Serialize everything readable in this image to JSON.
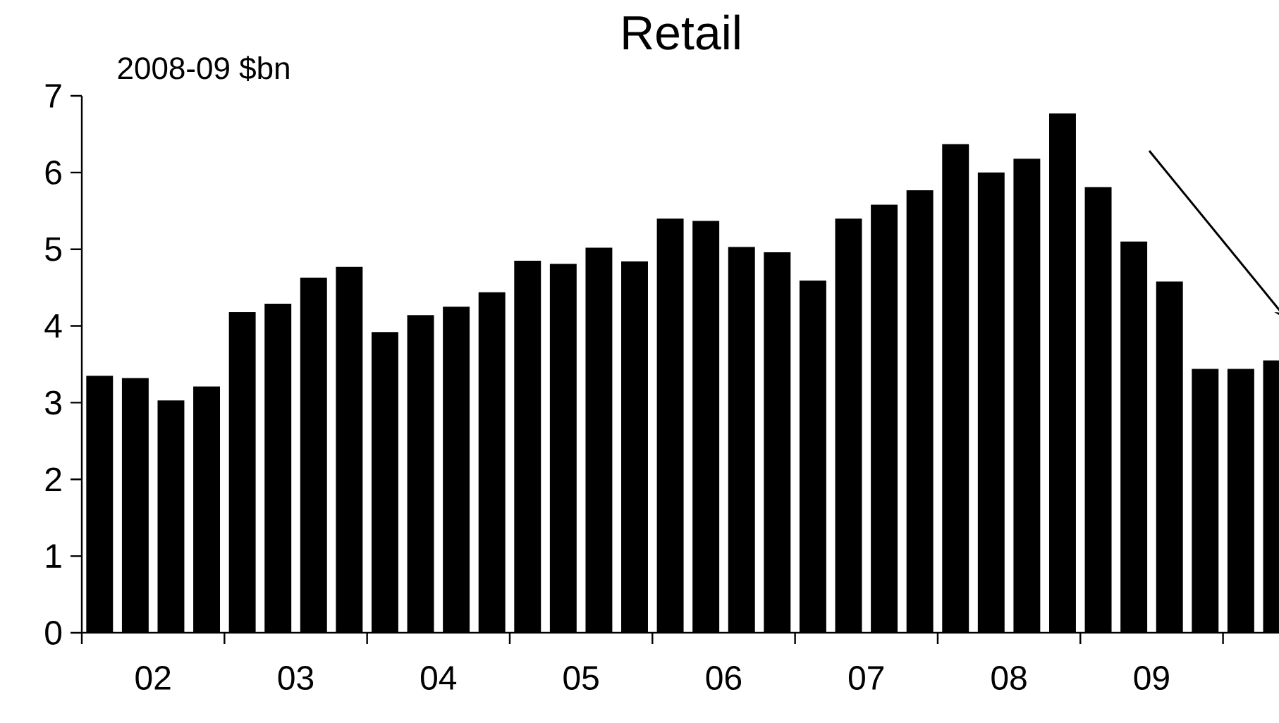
{
  "chart_data": {
    "type": "bar",
    "title": "Retail",
    "annotations": [
      "2008-09 $bn"
    ],
    "categories": [
      null,
      "02",
      null,
      null,
      null,
      "03",
      null,
      null,
      null,
      "04",
      null,
      null,
      null,
      "05",
      null,
      null,
      null,
      "06",
      null,
      null,
      null,
      "07",
      null,
      null,
      null,
      "08",
      null,
      null,
      null,
      "09",
      null,
      null,
      null,
      null
    ],
    "values": [
      3.35,
      3.32,
      3.03,
      3.21,
      4.18,
      4.29,
      4.63,
      4.77,
      3.92,
      4.14,
      4.25,
      4.44,
      4.85,
      4.81,
      5.02,
      4.84,
      5.4,
      5.37,
      5.03,
      4.96,
      4.59,
      5.4,
      5.58,
      5.77,
      6.37,
      6.0,
      6.18,
      6.77,
      5.81,
      5.1,
      4.58,
      3.44,
      3.44,
      3.55
    ],
    "color": "#000000",
    "ylim": [
      0,
      7
    ],
    "yticks": [
      0,
      1,
      2,
      3,
      4,
      5,
      6,
      7
    ]
  }
}
